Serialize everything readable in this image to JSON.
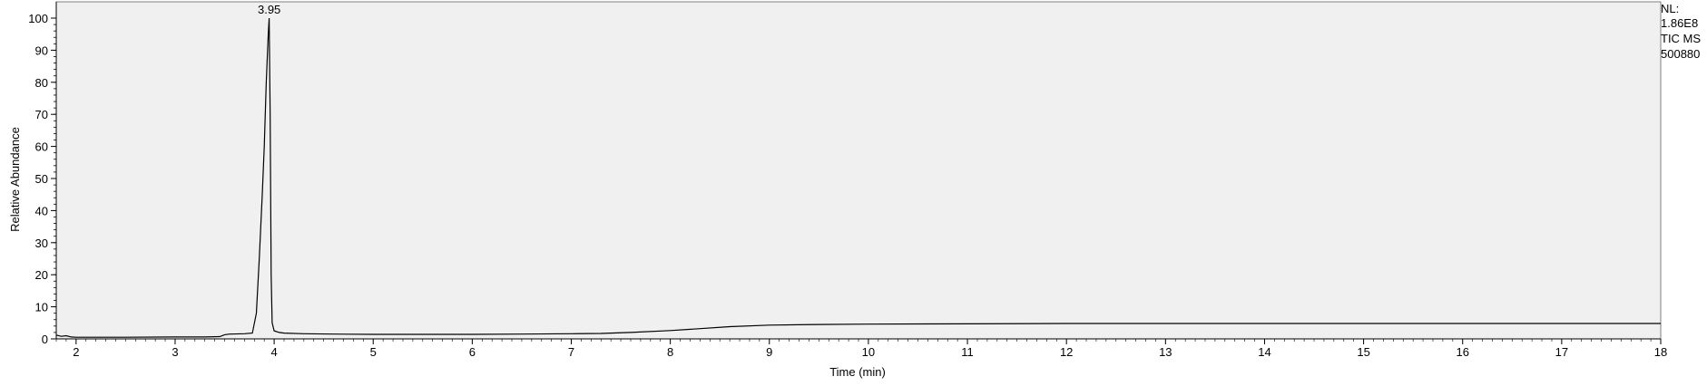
{
  "chart_data": {
    "type": "line",
    "title": "",
    "xlabel": "Time (min)",
    "ylabel": "Relative Abundance",
    "xlim": [
      1.8,
      18
    ],
    "ylim": [
      0,
      100
    ],
    "x_ticks": [
      2,
      3,
      4,
      5,
      6,
      7,
      8,
      9,
      10,
      11,
      12,
      13,
      14,
      15,
      16,
      17,
      18
    ],
    "y_ticks": [
      0,
      10,
      20,
      30,
      40,
      50,
      60,
      70,
      80,
      90,
      100
    ],
    "grid": false,
    "peak_labels": [
      {
        "x": 3.95,
        "y": 100,
        "text": "3.95"
      }
    ],
    "series": [
      {
        "x": [
          1.8,
          1.85,
          1.9,
          1.95,
          2.0,
          2.2,
          2.5,
          3.0,
          3.3,
          3.45,
          3.5,
          3.55,
          3.7,
          3.78,
          3.82,
          3.85,
          3.88,
          3.9,
          3.92,
          3.94,
          3.95,
          3.96,
          3.97,
          3.98,
          4.0,
          4.05,
          4.1,
          4.3,
          4.6,
          5.0,
          5.5,
          6.0,
          6.5,
          7.0,
          7.3,
          7.6,
          8.0,
          8.3,
          8.6,
          9.0,
          9.5,
          10.0,
          11.0,
          12.0,
          13.0,
          14.0,
          15.0,
          16.0,
          17.0,
          18.0
        ],
        "values": [
          1.2,
          0.8,
          1.0,
          0.6,
          0.5,
          0.5,
          0.5,
          0.6,
          0.6,
          0.7,
          1.3,
          1.5,
          1.6,
          1.8,
          8,
          25,
          45,
          60,
          80,
          95,
          100,
          70,
          20,
          5,
          2.5,
          2.0,
          1.8,
          1.6,
          1.5,
          1.4,
          1.4,
          1.4,
          1.5,
          1.6,
          1.7,
          2.0,
          2.6,
          3.2,
          3.8,
          4.3,
          4.5,
          4.6,
          4.7,
          4.8,
          4.8,
          4.8,
          4.8,
          4.8,
          4.8,
          4.8
        ]
      }
    ]
  },
  "info": {
    "nl_label": "NL:",
    "nl_value": "1.86E8",
    "scan_label": "TIC  MS",
    "file_name": "500880"
  }
}
